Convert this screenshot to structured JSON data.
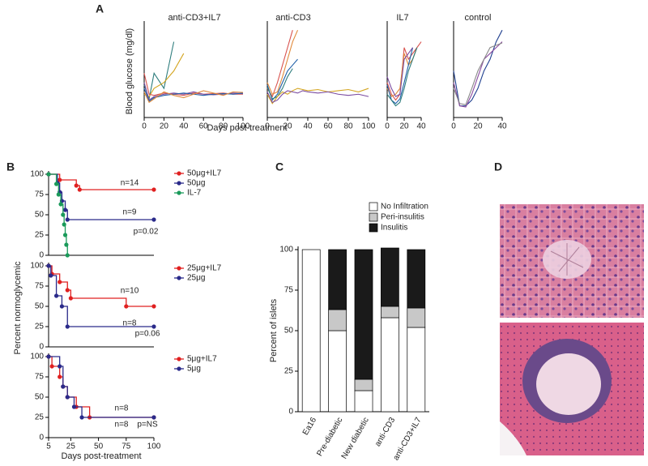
{
  "panel_labels": [
    "A",
    "B",
    "C",
    "D"
  ],
  "chart_data": [
    {
      "type": "line",
      "title": "anti-CD3+IL7",
      "ylabel": "Blood glucose (mg/dl)",
      "xlabel": "Days post-treatment",
      "x": [
        0,
        5,
        10,
        20,
        30,
        40,
        50,
        60,
        70,
        80,
        90,
        100
      ],
      "xlim": [
        0,
        100
      ],
      "xticks": [
        0,
        20,
        40,
        60,
        80,
        100
      ],
      "ylim": [
        0,
        800
      ],
      "series": [
        {
          "color": "#2e7d7d",
          "values": [
            280,
            160,
            380,
            250,
            650,
            null,
            null,
            null,
            null,
            null,
            null,
            null
          ]
        },
        {
          "color": "#d4a520",
          "values": [
            200,
            180,
            250,
            300,
            400,
            550,
            null,
            null,
            null,
            null,
            null,
            null
          ]
        },
        {
          "color": "#d9534f",
          "values": [
            380,
            200,
            190,
            210,
            200,
            190,
            210,
            200,
            205,
            210,
            200,
            200
          ]
        },
        {
          "color": "#7a4aa0",
          "values": [
            300,
            150,
            180,
            200,
            210,
            200,
            220,
            200,
            195,
            200,
            210,
            205
          ]
        },
        {
          "color": "#1f5fa8",
          "values": [
            250,
            140,
            170,
            190,
            200,
            210,
            200,
            190,
            200,
            205,
            200,
            210
          ]
        },
        {
          "color": "#e08a3c",
          "values": [
            220,
            130,
            160,
            220,
            190,
            170,
            200,
            230,
            210,
            190,
            220,
            215
          ]
        }
      ]
    },
    {
      "type": "line",
      "title": "anti-CD3",
      "x": [
        0,
        5,
        10,
        15,
        20,
        25,
        30,
        35,
        40,
        50,
        60,
        70,
        80,
        90,
        100
      ],
      "xlim": [
        0,
        100
      ],
      "xticks": [
        0,
        20,
        40,
        60,
        80,
        100
      ],
      "ylim": [
        0,
        800
      ],
      "series": [
        {
          "color": "#d9534f",
          "values": [
            250,
            180,
            300,
            450,
            600,
            750,
            null,
            null,
            null,
            null,
            null,
            null,
            null,
            null,
            null
          ]
        },
        {
          "color": "#e08a3c",
          "values": [
            300,
            200,
            220,
            350,
            500,
            650,
            750,
            null,
            null,
            null,
            null,
            null,
            null,
            null,
            null
          ]
        },
        {
          "color": "#1f5fa8",
          "values": [
            280,
            150,
            200,
            300,
            400,
            450,
            500,
            null,
            null,
            null,
            null,
            null,
            null,
            null,
            null
          ]
        },
        {
          "color": "#2e7d7d",
          "values": [
            260,
            160,
            180,
            250,
            350,
            420,
            null,
            null,
            null,
            null,
            null,
            null,
            null,
            null,
            null
          ]
        },
        {
          "color": "#d4a520",
          "values": [
            200,
            120,
            180,
            220,
            200,
            230,
            250,
            240,
            230,
            240,
            220,
            230,
            240,
            220,
            250
          ]
        },
        {
          "color": "#7a4aa0",
          "values": [
            220,
            130,
            150,
            200,
            230,
            220,
            210,
            230,
            220,
            210,
            220,
            200,
            190,
            200,
            180
          ]
        }
      ]
    },
    {
      "type": "line",
      "title": "IL7",
      "x": [
        0,
        5,
        10,
        15,
        20,
        25,
        30,
        35,
        40
      ],
      "xlim": [
        0,
        40
      ],
      "xticks": [
        0,
        20,
        40
      ],
      "ylim": [
        0,
        800
      ],
      "series": [
        {
          "color": "#d9534f",
          "values": [
            300,
            200,
            150,
            200,
            600,
            500,
            550,
            600,
            650
          ]
        },
        {
          "color": "#e08a3c",
          "values": [
            250,
            180,
            200,
            250,
            550,
            450,
            500,
            600,
            null
          ]
        },
        {
          "color": "#1f5fa8",
          "values": [
            280,
            150,
            120,
            160,
            300,
            450,
            600,
            null,
            null
          ]
        },
        {
          "color": "#2e7d7d",
          "values": [
            200,
            150,
            100,
            130,
            250,
            400,
            500,
            600,
            null
          ]
        },
        {
          "color": "#7a4aa0",
          "values": [
            350,
            250,
            180,
            200,
            500,
            550,
            600,
            null,
            null
          ]
        }
      ]
    },
    {
      "type": "line",
      "title": "control",
      "x": [
        0,
        5,
        10,
        15,
        20,
        25,
        30,
        35,
        40
      ],
      "xlim": [
        0,
        40
      ],
      "xticks": [
        0,
        20,
        40
      ],
      "ylim": [
        0,
        800
      ],
      "series": [
        {
          "color": "#1f3f8f",
          "values": [
            400,
            100,
            100,
            150,
            250,
            400,
            500,
            650,
            750
          ]
        },
        {
          "color": "#8a4aa0",
          "values": [
            300,
            100,
            90,
            200,
            350,
            500,
            550,
            600,
            650
          ]
        },
        {
          "color": "#888888",
          "values": [
            250,
            120,
            110,
            250,
            400,
            500,
            600,
            620,
            640
          ]
        }
      ]
    },
    {
      "type": "step",
      "ylabel": "Percent  normoglycemic",
      "xlim": [
        5,
        100
      ],
      "ylim": [
        0,
        100
      ],
      "yticks": [
        0,
        25,
        50,
        75,
        100
      ],
      "annotations": [
        "n=14",
        "n=9",
        "p=0.02"
      ],
      "series": [
        {
          "name": "50μg+IL7",
          "color": "#e02020",
          "x": [
            5,
            15,
            30,
            33,
            100
          ],
          "values": [
            100,
            93,
            86,
            81,
            81
          ]
        },
        {
          "name": "50μg",
          "color": "#2a2a8a",
          "x": [
            5,
            13,
            15,
            17,
            20,
            22,
            100
          ],
          "values": [
            100,
            89,
            78,
            67,
            56,
            44,
            44
          ]
        },
        {
          "name": "IL-7",
          "color": "#1a9a5a",
          "x": [
            5,
            12,
            14,
            16,
            18,
            19,
            20,
            21,
            22
          ],
          "values": [
            100,
            88,
            75,
            63,
            50,
            38,
            25,
            13,
            0
          ]
        }
      ]
    },
    {
      "type": "step",
      "xlim": [
        5,
        100
      ],
      "ylim": [
        0,
        100
      ],
      "yticks": [
        0,
        25,
        50,
        75,
        100
      ],
      "annotations": [
        "n=10",
        "n=8",
        "p=0.06"
      ],
      "series": [
        {
          "name": "25μg+IL7",
          "color": "#e02020",
          "x": [
            5,
            8,
            15,
            22,
            25,
            75,
            100
          ],
          "values": [
            100,
            90,
            80,
            70,
            60,
            50,
            50
          ]
        },
        {
          "name": "25μg",
          "color": "#2a2a8a",
          "x": [
            5,
            7,
            12,
            17,
            22,
            100
          ],
          "values": [
            100,
            88,
            63,
            50,
            25,
            25
          ]
        }
      ]
    },
    {
      "type": "step",
      "xlabel": "Days post-treatment",
      "xlim": [
        5,
        100
      ],
      "xticks": [
        5,
        25,
        50,
        75,
        100
      ],
      "ylim": [
        0,
        100
      ],
      "yticks": [
        0,
        25,
        50,
        75,
        100
      ],
      "annotations": [
        "n=8",
        "n=8",
        "p=NS"
      ],
      "series": [
        {
          "name": "5μg+IL7",
          "color": "#e02020",
          "x": [
            5,
            8,
            15,
            18,
            22,
            30,
            42,
            100
          ],
          "values": [
            100,
            88,
            75,
            63,
            50,
            38,
            25,
            25
          ]
        },
        {
          "name": "5μg",
          "color": "#2a2a8a",
          "x": [
            5,
            15,
            18,
            22,
            28,
            35,
            100
          ],
          "values": [
            100,
            88,
            63,
            50,
            38,
            25,
            25
          ]
        }
      ]
    },
    {
      "type": "stacked-bar",
      "ylabel": "Percent of islets",
      "categories": [
        "Ea16",
        "Pre-diabetic",
        "New diabetic",
        "anti-CD3",
        "anti-CD3+IL7"
      ],
      "ylim": [
        0,
        100
      ],
      "yticks": [
        0,
        25,
        50,
        75,
        100
      ],
      "series": [
        {
          "name": "No Infiltration",
          "color": "#ffffff",
          "values": [
            100,
            50,
            13,
            58,
            52
          ]
        },
        {
          "name": "Peri-insulitis",
          "color": "#c8c8c8",
          "values": [
            0,
            13,
            7,
            7,
            12
          ]
        },
        {
          "name": "Insulitis",
          "color": "#1a1a1a",
          "values": [
            0,
            37,
            80,
            36,
            36
          ]
        }
      ]
    }
  ]
}
